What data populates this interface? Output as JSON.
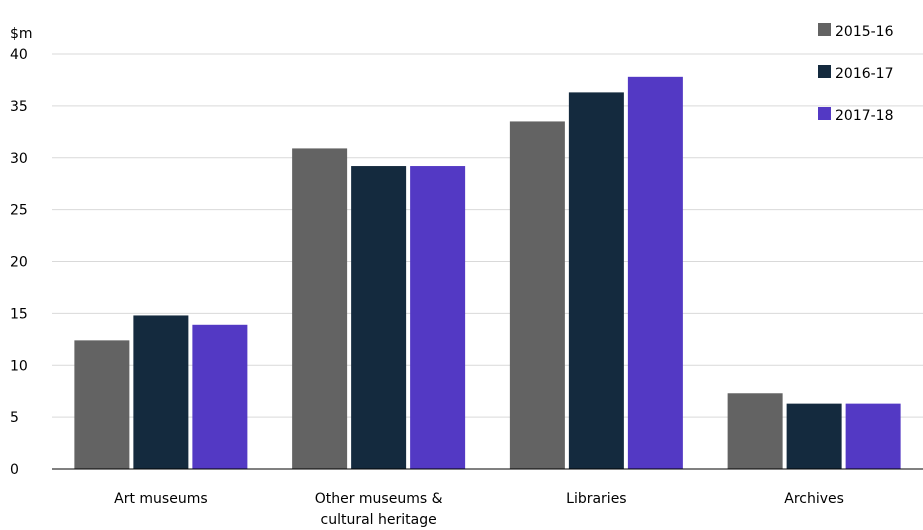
{
  "chart_data": {
    "type": "bar",
    "y_unit": "$m",
    "categories": [
      "Art museums",
      "Other museums & cultural heritage",
      "Libraries",
      "Archives"
    ],
    "category_lines": [
      [
        "Art museums"
      ],
      [
        "Other museums &",
        "cultural heritage"
      ],
      [
        "Libraries"
      ],
      [
        "Archives"
      ]
    ],
    "series": [
      {
        "name": "2015-16",
        "color": "#636363",
        "values": [
          12.4,
          30.9,
          33.5,
          7.3
        ]
      },
      {
        "name": "2016-17",
        "color": "#142a3e",
        "values": [
          14.8,
          29.2,
          36.3,
          6.3
        ]
      },
      {
        "name": "2017-18",
        "color": "#5339c4",
        "values": [
          13.9,
          29.2,
          37.8,
          6.3
        ]
      }
    ],
    "ylim": [
      0,
      40
    ],
    "yticks": [
      0,
      5,
      10,
      15,
      20,
      25,
      30,
      35,
      40
    ],
    "grid": true,
    "legend_position": "top-right"
  }
}
